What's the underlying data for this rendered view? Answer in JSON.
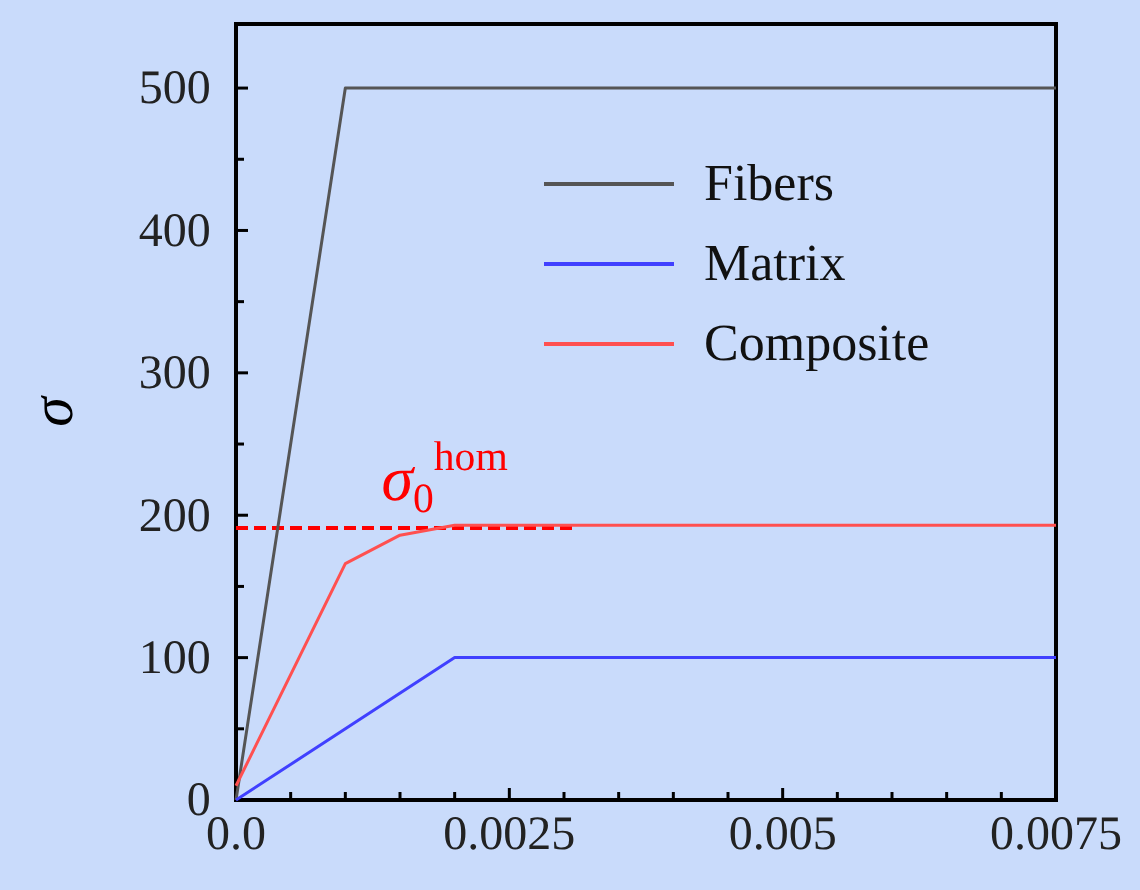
{
  "chart_data": {
    "type": "line",
    "ylabel": "σ",
    "xlim": [
      0,
      0.0075
    ],
    "ylim": [
      0,
      545
    ],
    "xticks": [
      {
        "value": 0,
        "label": "0.0"
      },
      {
        "value": 0.0005,
        "label": null
      },
      {
        "value": 0.001,
        "label": null
      },
      {
        "value": 0.0015,
        "label": null
      },
      {
        "value": 0.002,
        "label": null
      },
      0.0025,
      {
        "value": 0.003,
        "label": null
      },
      {
        "value": 0.0035,
        "label": null
      },
      {
        "value": 0.004,
        "label": null
      },
      {
        "value": 0.0045,
        "label": null
      },
      0.005,
      {
        "value": 0.0055,
        "label": null
      },
      {
        "value": 0.006,
        "label": null
      },
      {
        "value": 0.0065,
        "label": null
      },
      {
        "value": 0.007,
        "label": null
      },
      0.0075
    ],
    "yticks": [
      0,
      {
        "value": 50,
        "label": null
      },
      100,
      {
        "value": 150,
        "label": null
      },
      200,
      {
        "value": 250,
        "label": null
      },
      300,
      {
        "value": 350,
        "label": null
      },
      400,
      {
        "value": 450,
        "label": null
      },
      500
    ],
    "series": [
      {
        "name": "Fibers",
        "color": "#555555",
        "x": [
          0,
          0.001,
          0.0075
        ],
        "values": [
          0,
          500,
          500
        ]
      },
      {
        "name": "Matrix",
        "color": "#4040ff",
        "x": [
          0,
          0.002,
          0.0075
        ],
        "values": [
          0,
          100,
          100
        ]
      },
      {
        "name": "Composite",
        "color": "#ff5050",
        "x": [
          0,
          0.001,
          0.0015,
          0.002,
          0.0075
        ],
        "values": [
          10,
          166,
          186,
          193,
          193
        ]
      }
    ],
    "ref_lines": [
      {
        "axis": "y",
        "value": 191,
        "label": "σ$_{0}$$^{hom}$",
        "color": "#ff0000",
        "line_style": "dashed"
      }
    ],
    "legend": "top right",
    "grid": false,
    "line_style": "solid",
    "marker": "none"
  }
}
